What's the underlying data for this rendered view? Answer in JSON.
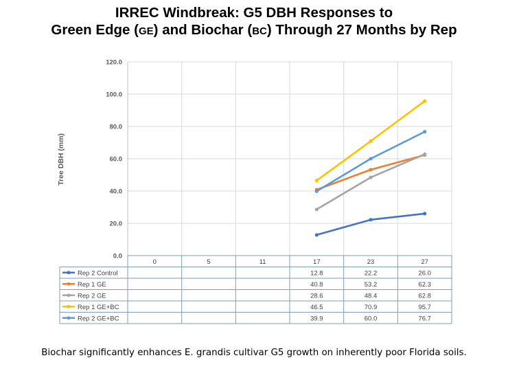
{
  "title": {
    "line1": "IRREC Windbreak: G5 DBH Responses to",
    "line2_a": "Green Edge (",
    "line2_b": "GE",
    "line2_c": ") and Biochar (",
    "line2_d": "BC",
    "line2_e": ") Through 27 Months by Rep"
  },
  "caption": "Biochar significantly enhances E. grandis cultivar G5 growth on inherently poor Florida soils.",
  "chart_data": {
    "type": "line",
    "ylabel": "Tree DBH (mm)",
    "xlabel": "",
    "ylim": [
      0,
      120
    ],
    "yticks": [
      "0.0",
      "20.0",
      "40.0",
      "60.0",
      "80.0",
      "100.0",
      "120.0"
    ],
    "categories": [
      "0",
      "5",
      "11",
      "17",
      "23",
      "27"
    ],
    "grid": true,
    "legend": "data-table",
    "series": [
      {
        "name": "Rep 2 Control",
        "color": "#4472c4",
        "values": [
          null,
          null,
          null,
          12.8,
          22.2,
          26.0
        ],
        "labels": [
          "",
          "",
          "",
          "12.8",
          "22.2",
          "26.0"
        ]
      },
      {
        "name": "Rep 1 GE",
        "color": "#ed7d31",
        "values": [
          null,
          null,
          null,
          40.8,
          53.2,
          62.3
        ],
        "labels": [
          "",
          "",
          "",
          "40.8",
          "53.2",
          "62.3"
        ]
      },
      {
        "name": "Rep 2 GE",
        "color": "#a5a5a5",
        "values": [
          null,
          null,
          null,
          28.6,
          48.4,
          62.8
        ],
        "labels": [
          "",
          "",
          "",
          "28.6",
          "48.4",
          "62.8"
        ]
      },
      {
        "name": "Rep 1 GE+BC",
        "color": "#ffc000",
        "values": [
          null,
          null,
          null,
          46.5,
          70.9,
          95.7
        ],
        "labels": [
          "",
          "",
          "",
          "46.5",
          "70.9",
          "95.7"
        ]
      },
      {
        "name": "Rep 2 GE+BC",
        "color": "#5b9bd5",
        "values": [
          null,
          null,
          null,
          39.9,
          60.0,
          76.7
        ],
        "labels": [
          "",
          "",
          "",
          "39.9",
          "60.0",
          "76.7"
        ]
      }
    ]
  }
}
